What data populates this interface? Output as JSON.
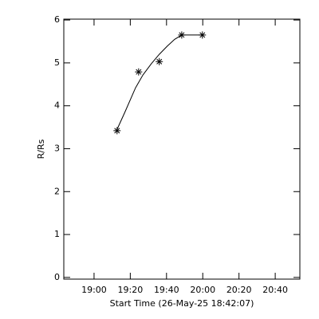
{
  "chart_data": {
    "type": "scatter",
    "xlabel": "Start Time (26-May-25 18:42:07)",
    "ylabel": "R/Rs",
    "series": [
      {
        "x": [
          1152.7,
          1164.6,
          1176.0,
          1188.4,
          1199.8
        ],
        "values": [
          3.42,
          4.79,
          5.03,
          5.65,
          5.65
        ],
        "color": "#000000",
        "marker": "asterisk"
      }
    ],
    "fit": {
      "x": [
        1152.7,
        1157.0,
        1162.9,
        1167.0,
        1171.6,
        1176.0,
        1180.4,
        1184.5,
        1188.4,
        1194.0,
        1199.8
      ],
      "values": [
        3.45,
        3.85,
        4.42,
        4.72,
        4.98,
        5.2,
        5.39,
        5.55,
        5.65,
        5.65,
        5.65
      ],
      "color": "#000000"
    },
    "xlim": [
      1123.3,
      1253.6
    ],
    "ylim": [
      -0.04,
      6.02
    ],
    "xticks": [
      {
        "value": 1140,
        "label": "19:00"
      },
      {
        "value": 1160,
        "label": "19:20"
      },
      {
        "value": 1180,
        "label": "19:40"
      },
      {
        "value": 1200,
        "label": "20:00"
      },
      {
        "value": 1220,
        "label": "20:20"
      },
      {
        "value": 1240,
        "label": "20:40"
      }
    ],
    "yticks": [
      0,
      1,
      2,
      3,
      4,
      5,
      6
    ],
    "grid": false
  }
}
